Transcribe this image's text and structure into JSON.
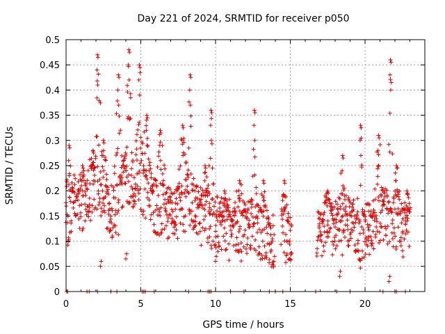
{
  "chart_data": {
    "type": "scatter",
    "title": "Day 221 of 2024, SRMTID for receiver p050",
    "xlabel": "GPS time / hours",
    "ylabel": "SRMTID / TECUs",
    "xlim": [
      0,
      24
    ],
    "ylim": [
      0,
      0.5
    ],
    "grid": true,
    "marker": "+",
    "series_color": "#e00000",
    "x_ticks": [
      0,
      5,
      10,
      15,
      20
    ],
    "x_tick_labels": [
      "0",
      "5",
      "10",
      "15",
      "20"
    ],
    "y_ticks": [
      0,
      0.05,
      0.1,
      0.15,
      0.2,
      0.25,
      0.3,
      0.35,
      0.4,
      0.45,
      0.5
    ],
    "y_tick_labels": [
      "0",
      "0.05",
      "0.1",
      "0.15",
      "0.2",
      "0.25",
      "0.3",
      "0.35",
      "0.4",
      "0.45",
      "0.5"
    ],
    "segments": [
      {
        "start": 0.0,
        "end": 9.6,
        "step": 0.05,
        "base": [
          [
            0.0,
            0.13
          ],
          [
            0.5,
            0.19
          ],
          [
            1.0,
            0.17
          ],
          [
            1.6,
            0.21
          ],
          [
            2.2,
            0.22
          ],
          [
            2.8,
            0.16
          ],
          [
            3.4,
            0.17
          ],
          [
            4.0,
            0.23
          ],
          [
            4.6,
            0.22
          ],
          [
            5.3,
            0.2
          ],
          [
            6.0,
            0.17
          ],
          [
            6.8,
            0.16
          ],
          [
            7.5,
            0.17
          ],
          [
            8.2,
            0.19
          ],
          [
            9.0,
            0.16
          ],
          [
            9.6,
            0.15
          ]
        ]
      },
      {
        "start": 9.6,
        "end": 13.9,
        "step": 0.05,
        "base": [
          [
            9.6,
            0.14
          ],
          [
            10.5,
            0.13
          ],
          [
            11.5,
            0.13
          ],
          [
            12.5,
            0.13
          ],
          [
            13.5,
            0.11
          ],
          [
            13.9,
            0.1
          ]
        ]
      },
      {
        "start": 14.4,
        "end": 15.1,
        "step": 0.05,
        "base": [
          [
            14.4,
            0.14
          ],
          [
            15.1,
            0.11
          ]
        ]
      },
      {
        "start": 16.8,
        "end": 23.0,
        "step": 0.05,
        "base": [
          [
            16.8,
            0.1
          ],
          [
            17.5,
            0.15
          ],
          [
            18.0,
            0.13
          ],
          [
            18.5,
            0.14
          ],
          [
            19.0,
            0.14
          ],
          [
            19.6,
            0.11
          ],
          [
            20.2,
            0.12
          ],
          [
            20.8,
            0.14
          ],
          [
            21.4,
            0.15
          ],
          [
            22.0,
            0.14
          ],
          [
            22.6,
            0.12
          ],
          [
            23.0,
            0.14
          ]
        ]
      }
    ],
    "peaks": [
      {
        "x": 0.2,
        "y": 0.29,
        "w": 0.2
      },
      {
        "x": 1.1,
        "y": 0.25,
        "w": 0.3
      },
      {
        "x": 1.8,
        "y": 0.28,
        "w": 0.4
      },
      {
        "x": 2.1,
        "y": 0.47,
        "w": 0.15
      },
      {
        "x": 2.5,
        "y": 0.3,
        "w": 0.3
      },
      {
        "x": 3.5,
        "y": 0.43,
        "w": 0.3
      },
      {
        "x": 4.2,
        "y": 0.48,
        "w": 0.2
      },
      {
        "x": 4.9,
        "y": 0.45,
        "w": 0.2
      },
      {
        "x": 5.4,
        "y": 0.35,
        "w": 0.3
      },
      {
        "x": 6.3,
        "y": 0.32,
        "w": 0.4
      },
      {
        "x": 7.8,
        "y": 0.33,
        "w": 0.3
      },
      {
        "x": 8.3,
        "y": 0.43,
        "w": 0.15
      },
      {
        "x": 9.3,
        "y": 0.25,
        "w": 0.3
      },
      {
        "x": 9.7,
        "y": 0.36,
        "w": 0.15
      },
      {
        "x": 10.6,
        "y": 0.2,
        "w": 0.4
      },
      {
        "x": 11.6,
        "y": 0.22,
        "w": 0.4
      },
      {
        "x": 12.6,
        "y": 0.36,
        "w": 0.15
      },
      {
        "x": 13.2,
        "y": 0.22,
        "w": 0.3
      },
      {
        "x": 14.6,
        "y": 0.22,
        "w": 0.2
      },
      {
        "x": 17.5,
        "y": 0.2,
        "w": 0.3
      },
      {
        "x": 18.5,
        "y": 0.27,
        "w": 0.2
      },
      {
        "x": 19.7,
        "y": 0.33,
        "w": 0.2
      },
      {
        "x": 20.9,
        "y": 0.31,
        "w": 0.3
      },
      {
        "x": 21.7,
        "y": 0.46,
        "w": 0.15
      },
      {
        "x": 22.1,
        "y": 0.25,
        "w": 0.3
      },
      {
        "x": 22.8,
        "y": 0.2,
        "w": 0.3
      }
    ],
    "dips": [
      {
        "x": 2.3,
        "y": 0.05
      },
      {
        "x": 4.0,
        "y": 0.065
      },
      {
        "x": 10.0,
        "y": 0.06
      },
      {
        "x": 13.9,
        "y": 0.06
      },
      {
        "x": 18.3,
        "y": 0.03
      },
      {
        "x": 21.6,
        "y": 0.02
      }
    ],
    "baseline_zeros": [
      0.05,
      0.1,
      1.4,
      1.55,
      2.1,
      3.0,
      3.4,
      5.1,
      5.2,
      5.3,
      5.9,
      8.2,
      9.5,
      9.6,
      9.7,
      11.0,
      11.9,
      13.6,
      14.0,
      14.5,
      16.7,
      18.1,
      19.0,
      21.2,
      22.0,
      22.1,
      22.7
    ]
  }
}
